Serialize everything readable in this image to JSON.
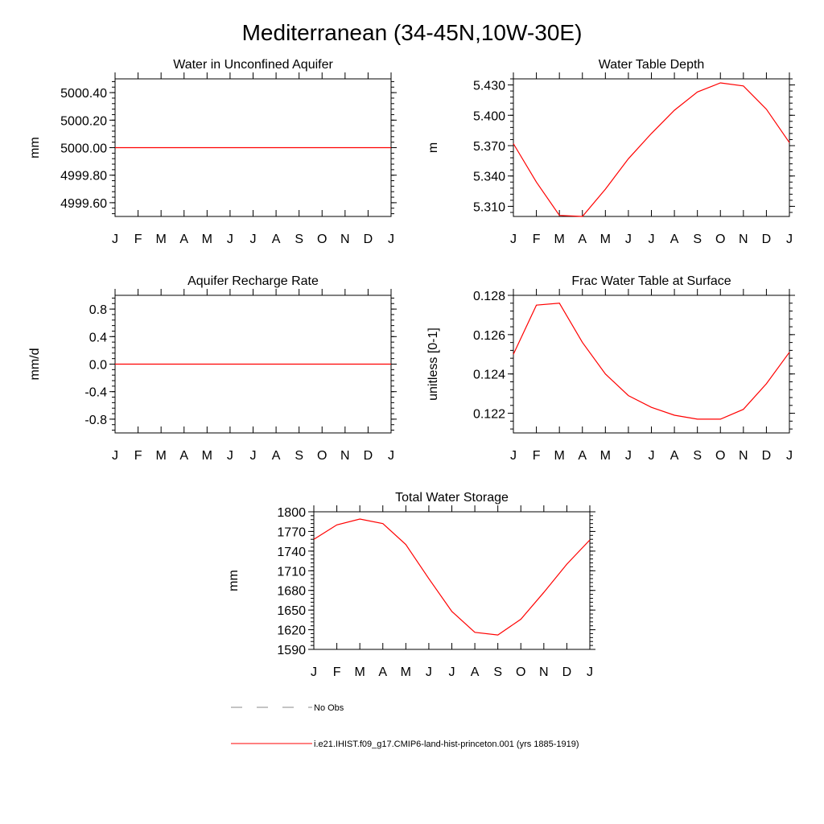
{
  "figure_title": "Mediterranean (34-45N,10W-30E)",
  "month_labels": [
    "J",
    "F",
    "M",
    "A",
    "M",
    "J",
    "J",
    "A",
    "S",
    "O",
    "N",
    "D",
    "J"
  ],
  "series_color": "#ff0000",
  "legend": {
    "items": [
      {
        "label": "No Obs",
        "color": "#888888",
        "style": "dashed"
      },
      {
        "label": "i.e21.IHIST.f09_g17.CMIP6-land-hist-princeton.001 (yrs 1885-1919)",
        "color": "#ff0000",
        "style": "solid"
      }
    ]
  },
  "chart_data": [
    {
      "type": "line",
      "title": "Water in Unconfined Aquifer",
      "ylabel": "mm",
      "ylim": [
        4999.5,
        5000.5
      ],
      "yticks": [
        4999.6,
        4999.8,
        5000.0,
        5000.2,
        5000.4
      ],
      "ytick_labels": [
        "4999.60",
        "4999.80",
        "5000.00",
        "5000.20",
        "5000.40"
      ],
      "x": [
        "J",
        "F",
        "M",
        "A",
        "M",
        "J",
        "J",
        "A",
        "S",
        "O",
        "N",
        "D",
        "J"
      ],
      "series": [
        {
          "values": [
            5000,
            5000,
            5000,
            5000,
            5000,
            5000,
            5000,
            5000,
            5000,
            5000,
            5000,
            5000,
            5000
          ]
        }
      ]
    },
    {
      "type": "line",
      "title": "Water Table Depth",
      "ylabel": "m",
      "ylim": [
        5.3,
        5.436
      ],
      "yticks": [
        5.31,
        5.34,
        5.37,
        5.4,
        5.43
      ],
      "ytick_labels": [
        "5.310",
        "5.340",
        "5.370",
        "5.400",
        "5.430"
      ],
      "x": [
        "J",
        "F",
        "M",
        "A",
        "M",
        "J",
        "J",
        "A",
        "S",
        "O",
        "N",
        "D",
        "J"
      ],
      "series": [
        {
          "values": [
            5.372,
            5.334,
            5.301,
            5.3,
            5.327,
            5.357,
            5.382,
            5.405,
            5.423,
            5.432,
            5.429,
            5.406,
            5.373
          ]
        }
      ]
    },
    {
      "type": "line",
      "title": "Aquifer Recharge Rate",
      "ylabel": "mm/d",
      "ylim": [
        -1.0,
        1.0
      ],
      "yticks": [
        -0.8,
        -0.4,
        0.0,
        0.4,
        0.8
      ],
      "ytick_labels": [
        "-0.8",
        "-0.4",
        "0.0",
        "0.4",
        "0.8"
      ],
      "x": [
        "J",
        "F",
        "M",
        "A",
        "M",
        "J",
        "J",
        "A",
        "S",
        "O",
        "N",
        "D",
        "J"
      ],
      "series": [
        {
          "values": [
            0,
            0,
            0,
            0,
            0,
            0,
            0,
            0,
            0,
            0,
            0,
            0,
            0
          ]
        }
      ]
    },
    {
      "type": "line",
      "title": "Frac Water Table at Surface",
      "ylabel": "unitless [0-1]",
      "ylim": [
        0.121,
        0.128
      ],
      "yticks": [
        0.122,
        0.124,
        0.126,
        0.128
      ],
      "ytick_labels": [
        "0.122",
        "0.124",
        "0.126",
        "0.128"
      ],
      "x": [
        "J",
        "F",
        "M",
        "A",
        "M",
        "J",
        "J",
        "A",
        "S",
        "O",
        "N",
        "D",
        "J"
      ],
      "series": [
        {
          "values": [
            0.125,
            0.1275,
            0.1276,
            0.1256,
            0.124,
            0.1229,
            0.1223,
            0.1219,
            0.1217,
            0.1217,
            0.1222,
            0.1235,
            0.1251
          ]
        }
      ]
    },
    {
      "type": "line",
      "title": "Total Water Storage",
      "ylabel": "mm",
      "ylim": [
        1590,
        1800
      ],
      "yticks": [
        1590,
        1620,
        1650,
        1680,
        1710,
        1740,
        1770,
        1800
      ],
      "ytick_labels": [
        "1590",
        "1620",
        "1650",
        "1680",
        "1710",
        "1740",
        "1770",
        "1800"
      ],
      "x": [
        "J",
        "F",
        "M",
        "A",
        "M",
        "J",
        "J",
        "A",
        "S",
        "O",
        "N",
        "D",
        "J"
      ],
      "series": [
        {
          "values": [
            1758,
            1780,
            1789,
            1782,
            1750,
            1698,
            1648,
            1616,
            1612,
            1636,
            1677,
            1720,
            1757
          ]
        }
      ]
    }
  ]
}
